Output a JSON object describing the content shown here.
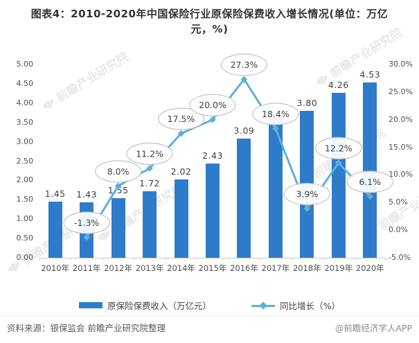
{
  "title": "图表4：2010-2020年中国保险行业原保险保费收入增长情况(单位：万亿元，%)",
  "watermark_text": "前瞻产业研究院",
  "legend": [
    {
      "label": "原保险保费收入（万亿元）",
      "type": "bar",
      "color": "#2e7cc9"
    },
    {
      "label": "同比增长（%）",
      "type": "line",
      "color": "#5eafdc"
    }
  ],
  "footer": {
    "source": "资料来源：银保监会 前瞻产业研究院整理",
    "brand": "@前瞻经济学人APP"
  },
  "colors": {
    "bar": "#2e7cc9",
    "line": "#5eafdc",
    "callout_stroke": "#c2c2c2",
    "callout_fill": "rgba(255,255,255,0.93)",
    "callout_text": "#3f3f3f",
    "axis_text": "#4d4d4d",
    "axis_line": "#c9c9c9",
    "bar_label_text": "#3f3f3f"
  },
  "chart_data": {
    "type": "bar+line combo",
    "categories": [
      "2010年",
      "2011年",
      "2012年",
      "2013年",
      "2014年",
      "2015年",
      "2016年",
      "2017年",
      "2018年",
      "2019年",
      "2020年"
    ],
    "series": [
      {
        "name": "原保险保费收入（万亿元）",
        "type": "bar",
        "axis": "left",
        "values": [
          1.45,
          1.43,
          1.55,
          1.72,
          2.02,
          2.43,
          3.09,
          3.66,
          3.8,
          4.26,
          4.53
        ],
        "labels": [
          "1.45",
          "1.43",
          "1.55",
          "1.72",
          "2.02",
          "2.43",
          "3.09",
          "",
          "3.80",
          "4.26",
          "4.53"
        ],
        "note": "2017 bar data label is hidden behind the 18.4% callout; bar height estimated from axis"
      },
      {
        "name": "同比增长（%）",
        "type": "line",
        "axis": "right",
        "values": [
          null,
          -1.3,
          8.0,
          11.2,
          17.5,
          20.0,
          27.3,
          18.4,
          3.9,
          12.2,
          6.1
        ],
        "labels": [
          "",
          "-1.3%",
          "8.0%",
          "11.2%",
          "17.5%",
          "20.0%",
          "27.3%",
          "18.4%",
          "3.9%",
          "12.2%",
          "6.1%"
        ]
      }
    ],
    "left_axis": {
      "min": 0,
      "max": 5,
      "step": 0.5,
      "ticks": [
        "0.00",
        "0.50",
        "1.00",
        "1.50",
        "2.00",
        "2.50",
        "3.00",
        "3.50",
        "4.00",
        "4.50",
        "5.00"
      ]
    },
    "right_axis": {
      "min": -5,
      "max": 30,
      "step": 5,
      "ticks": [
        "-5.0%",
        "0.0%",
        "5.0%",
        "10.0%",
        "15.0%",
        "20.0%",
        "25.0%",
        "30.0%"
      ]
    },
    "grid": false,
    "legend_position": "bottom",
    "callout_style": "ellipse bubbles above each line point"
  }
}
